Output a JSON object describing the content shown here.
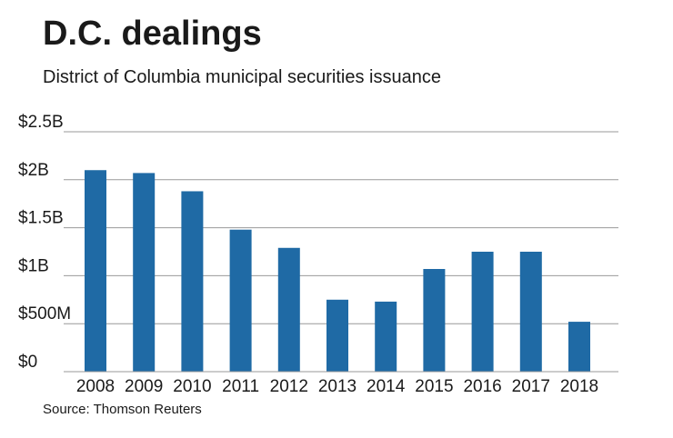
{
  "title": "D.C. dealings",
  "subtitle": "District of Columbia municipal securities issuance",
  "source": "Source: Thomson Reuters",
  "colors": {
    "bar": "#1f6aa5",
    "gridline": "#999999",
    "text": "#1a1a1a"
  },
  "chart_data": {
    "type": "bar",
    "title": "D.C. dealings",
    "subtitle": "District of Columbia municipal securities issuance",
    "xlabel": "",
    "ylabel": "",
    "categories": [
      "2008",
      "2009",
      "2010",
      "2011",
      "2012",
      "2013",
      "2014",
      "2015",
      "2016",
      "2017",
      "2018"
    ],
    "values": [
      2.1,
      2.07,
      1.88,
      1.48,
      1.29,
      0.75,
      0.73,
      1.07,
      1.25,
      1.25,
      0.52
    ],
    "value_unit": "billions of dollars",
    "ylim": [
      0,
      2.5
    ],
    "yticks": [
      0,
      0.5,
      1,
      1.5,
      2,
      2.5
    ],
    "ytick_labels": [
      "$0",
      "$500M",
      "$1B",
      "$1.5B",
      "$2B",
      "$2.5B"
    ],
    "grid": true,
    "legend": "none"
  }
}
